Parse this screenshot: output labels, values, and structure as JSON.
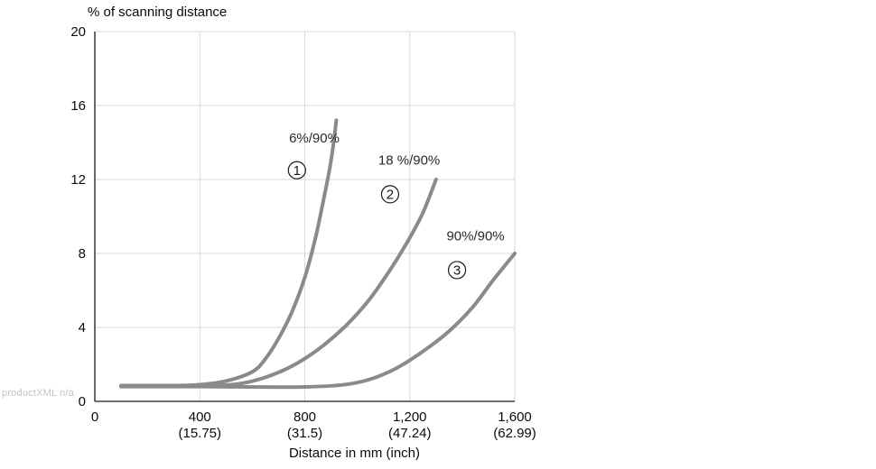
{
  "chart": {
    "type": "line",
    "y_title": "% of scanning distance",
    "x_title": "Distance in mm (inch)",
    "background_color": "#ffffff",
    "grid_color": "#d9d9d9",
    "axis_color": "#1a1a1a",
    "curve_color": "#8a8a8a",
    "text_color": "#0a0a0a",
    "label_fontsize": 15,
    "title_fontsize": 15,
    "curve_width": 4,
    "axis_width": 1.3,
    "grid_width": 1,
    "xlim": [
      0,
      1600
    ],
    "ylim": [
      0,
      20
    ],
    "xtick_step": 400,
    "ytick_step": 4,
    "x_ticks": [
      0,
      400,
      800,
      1200,
      1600
    ],
    "x_labels": [
      "0",
      "400",
      "800",
      "1,200",
      "1,600"
    ],
    "x_sublabels": [
      "",
      "(15.75)",
      "(31.5)",
      "(47.24)",
      "(62.99)"
    ],
    "y_ticks": [
      0,
      4,
      8,
      12,
      16,
      20
    ],
    "y_labels": [
      "0",
      "4",
      "8",
      "12",
      "16",
      "20"
    ],
    "series": [
      {
        "id": 1,
        "label": "6%/90%",
        "circled": "①",
        "points": [
          [
            100,
            0.85
          ],
          [
            200,
            0.85
          ],
          [
            300,
            0.85
          ],
          [
            400,
            0.9
          ],
          [
            500,
            1.1
          ],
          [
            600,
            1.6
          ],
          [
            650,
            2.3
          ],
          [
            700,
            3.4
          ],
          [
            750,
            4.8
          ],
          [
            800,
            6.7
          ],
          [
            840,
            8.8
          ],
          [
            870,
            10.8
          ],
          [
            895,
            12.6
          ],
          [
            910,
            14.0
          ],
          [
            920,
            15.2
          ]
        ],
        "label_xy": [
          740,
          14.0
        ],
        "circled_xy": [
          770,
          12.5
        ]
      },
      {
        "id": 2,
        "label": "18 %/90%",
        "circled": "②",
        "points": [
          [
            100,
            0.85
          ],
          [
            300,
            0.85
          ],
          [
            450,
            0.85
          ],
          [
            550,
            0.95
          ],
          [
            650,
            1.3
          ],
          [
            750,
            1.9
          ],
          [
            850,
            2.8
          ],
          [
            950,
            4.0
          ],
          [
            1040,
            5.4
          ],
          [
            1120,
            7.0
          ],
          [
            1190,
            8.6
          ],
          [
            1250,
            10.2
          ],
          [
            1300,
            12.0
          ]
        ],
        "label_xy": [
          1080,
          12.8
        ],
        "circled_xy": [
          1125,
          11.2
        ]
      },
      {
        "id": 3,
        "label": "90%/90%",
        "circled": "③",
        "points": [
          [
            100,
            0.8
          ],
          [
            400,
            0.8
          ],
          [
            600,
            0.78
          ],
          [
            800,
            0.78
          ],
          [
            950,
            0.9
          ],
          [
            1050,
            1.2
          ],
          [
            1150,
            1.8
          ],
          [
            1250,
            2.7
          ],
          [
            1350,
            3.8
          ],
          [
            1440,
            5.1
          ],
          [
            1520,
            6.6
          ],
          [
            1600,
            8.0
          ]
        ],
        "label_xy": [
          1340,
          8.7
        ],
        "circled_xy": [
          1380,
          7.1
        ]
      }
    ]
  },
  "watermark": "productXML n/a"
}
